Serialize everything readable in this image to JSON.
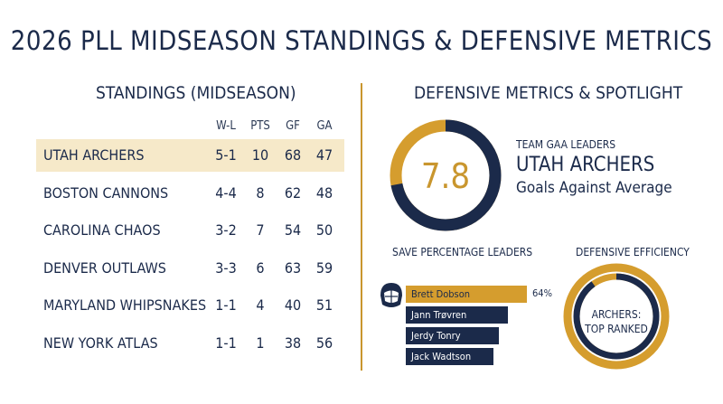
{
  "title": "2026 PLL MIDSEASON STANDINGS & DEFENSIVE METRICS",
  "standings": {
    "heading": "STANDINGS (MIDSEASON)",
    "columns": [
      "W-L",
      "PTS",
      "GF",
      "GA"
    ],
    "rows": [
      {
        "team": "UTAH ARCHERS",
        "wl": "5-1",
        "pts": "10",
        "gf": "68",
        "ga": "47",
        "highlighted": true
      },
      {
        "team": "BOSTON CANNONS",
        "wl": "4-4",
        "pts": "8",
        "gf": "62",
        "ga": "48"
      },
      {
        "team": "CAROLINA CHAOS",
        "wl": "3-2",
        "pts": "7",
        "gf": "54",
        "ga": "50"
      },
      {
        "team": "DENVER OUTLAWS",
        "wl": "3-3",
        "pts": "6",
        "gf": "63",
        "ga": "59"
      },
      {
        "team": "MARYLAND WHIPSNAKES",
        "wl": "1-1",
        "pts": "4",
        "gf": "40",
        "ga": "51"
      },
      {
        "team": "NEW YORK ATLAS",
        "wl": "1-1",
        "pts": "1",
        "gf": "38",
        "ga": "56"
      }
    ]
  },
  "defense": {
    "heading": "DEFENSIVE METRICS & SPOTLIGHT",
    "gaa": {
      "value": "7.8",
      "label": "TEAM GAA LEADERS",
      "team": "UTAH ARCHERS",
      "subtitle": "Goals Against Average",
      "ring_fill": 0.72
    },
    "save_pct": {
      "heading": "SAVE PERCENTAGE LEADERS",
      "icon": "goalie-helmet-icon",
      "top_value": "64%",
      "leaders": [
        {
          "name": "Brett Dobson",
          "fill": 0.64,
          "color": "gold"
        },
        {
          "name": "Jann Trøvren",
          "fill": 0.54
        },
        {
          "name": "Jerdy Tonry",
          "fill": 0.49
        },
        {
          "name": "Jack Wadtson",
          "fill": 0.46
        }
      ]
    },
    "efficiency": {
      "heading": "DEFENSIVE EFFICIENCY",
      "text_line1": "ARCHERS:",
      "text_line2": "TOP RANKED",
      "ring_fill": 0.9
    }
  },
  "colors": {
    "navy": "#1b2a4a",
    "gold": "#d59d2e",
    "highlight": "#f6e9c9"
  }
}
